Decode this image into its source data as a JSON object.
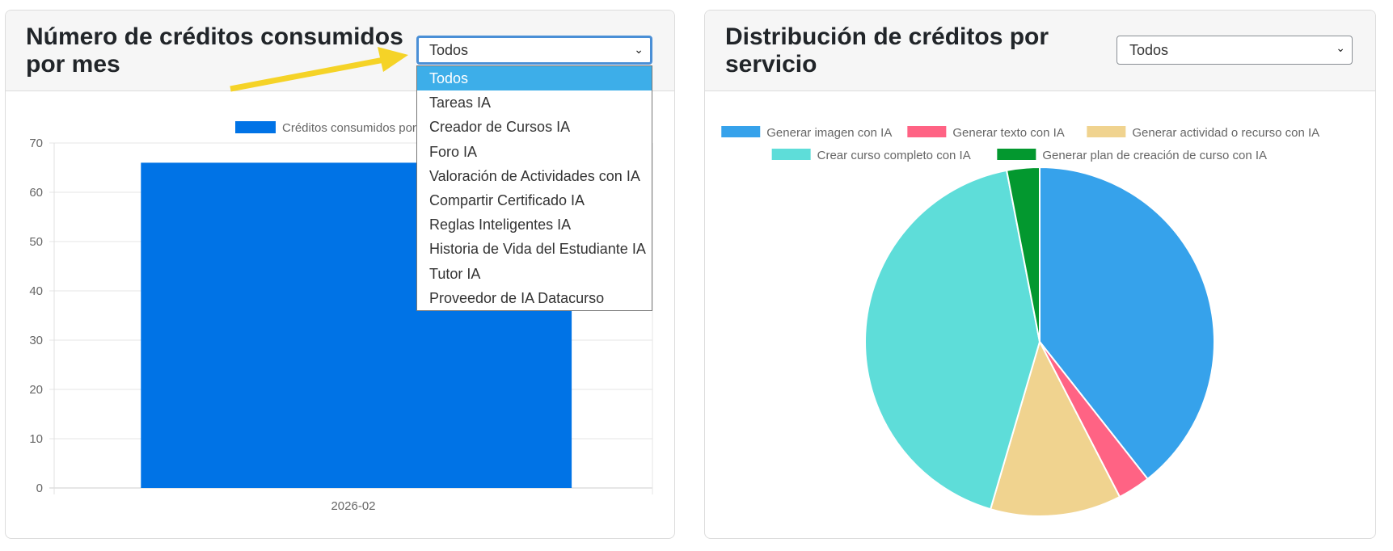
{
  "left_panel": {
    "title": "Número de créditos consumidos por mes",
    "select_value": "Todos",
    "options": [
      "Todos",
      "Tareas IA",
      "Creador de Cursos IA",
      "Foro IA",
      "Valoración de Actividades con IA",
      "Compartir Certificado IA",
      "Reglas Inteligentes IA",
      "Historia de Vida del Estudiante IA",
      "Tutor IA",
      "Proveedor de IA Datacurso"
    ]
  },
  "right_panel": {
    "title": "Distribución de créditos por servicio",
    "select_value": "Todos"
  },
  "annotation": {
    "arrow_color": "#f5d327",
    "arrow_target": "service filter select"
  },
  "chart_data": [
    {
      "type": "bar",
      "categories": [
        "2026-02"
      ],
      "series": [
        {
          "name": "Créditos consumidos por",
          "values": [
            66
          ],
          "color": "#0073e6"
        }
      ],
      "ylim": [
        0,
        70
      ],
      "yticks": [
        0,
        10,
        20,
        30,
        40,
        50,
        60,
        70
      ],
      "grid": true,
      "legend": "top"
    },
    {
      "type": "pie",
      "labels": [
        "Generar imagen con IA",
        "Generar texto con IA",
        "Generar actividad o recurso con IA",
        "Crear curso completo con IA",
        "Generar plan de creación de curso con IA"
      ],
      "values": [
        26,
        2,
        8,
        28,
        2
      ],
      "colors": [
        "#36a2eb",
        "#ff6384",
        "#f0d38f",
        "#5eddd9",
        "#03982f"
      ],
      "legend": "top"
    }
  ]
}
